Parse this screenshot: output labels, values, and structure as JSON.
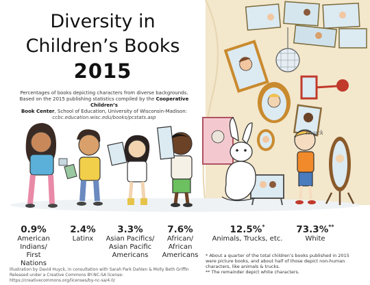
{
  "header": {
    "title_line1": "Diversity in",
    "title_line2": "Children’s Books",
    "year": "2015",
    "subtitle_line1": "Percentages of books depicting characters from diverse backgrounds.",
    "subtitle_line2_pre": "Based on the 2015 publishing statistics compiled by the",
    "subtitle_org1": "Cooperative Children’s",
    "subtitle_org2": "Book Center",
    "subtitle_line3_post": ", School of Education, University of Wisconsin-Madison:",
    "subtitle_url": "ccbc.education.wisc.edu/books/pcstats.asp"
  },
  "chart_data": {
    "type": "table",
    "unit": "%",
    "categories": [
      "American Indians/ First Nations",
      "Latinx",
      "Asian Pacifics/ Asian Pacific Americans",
      "African/ African Americans",
      "Animals, Trucks, etc.",
      "White"
    ],
    "values": [
      0.9,
      2.4,
      3.3,
      7.6,
      12.5,
      73.3
    ]
  },
  "stats": [
    {
      "pct": "0.9%",
      "mark": "",
      "lines": [
        "American",
        "Indians/",
        "First Nations"
      ]
    },
    {
      "pct": "2.4%",
      "mark": "",
      "lines": [
        "Latinx"
      ]
    },
    {
      "pct": "3.3%",
      "mark": "",
      "lines": [
        "Asian Pacifics/",
        "Asian Pacific",
        "Americans"
      ]
    },
    {
      "pct": "7.6%",
      "mark": "",
      "lines": [
        "African/",
        "African",
        "Americans"
      ]
    },
    {
      "pct": "12.5%",
      "mark": "*",
      "lines": [
        "Animals, Trucks, etc."
      ]
    },
    {
      "pct": "73.3%",
      "mark": "**",
      "lines": [
        "White"
      ]
    }
  ],
  "footnotes": {
    "note1_line1": "* About a quarter of the total children’s books published in 2015",
    "note1_line2": "were picture books, and about half of those depict non-human",
    "note1_line3": "characters, like animals & trucks.",
    "note2": "** The remainder depict white characters."
  },
  "credits": {
    "line1": "Illustration by David Huyck, in consultation with Sarah Park Dahlen & Molly Beth Griffin",
    "line2": "Released under a Creative Commons BY-NC-SA license: https://creativecommons.org/licenses/by-nc-sa/4.0/"
  },
  "illustration": {
    "signature": "Huyck"
  },
  "colors": {
    "ink": "#222222",
    "wall": "#f1e4c8",
    "floor": "#e9eef2",
    "mirror_frame": "#c98a2e",
    "frame_red": "#c0392b",
    "mirror_glass": "#dceaf2"
  }
}
